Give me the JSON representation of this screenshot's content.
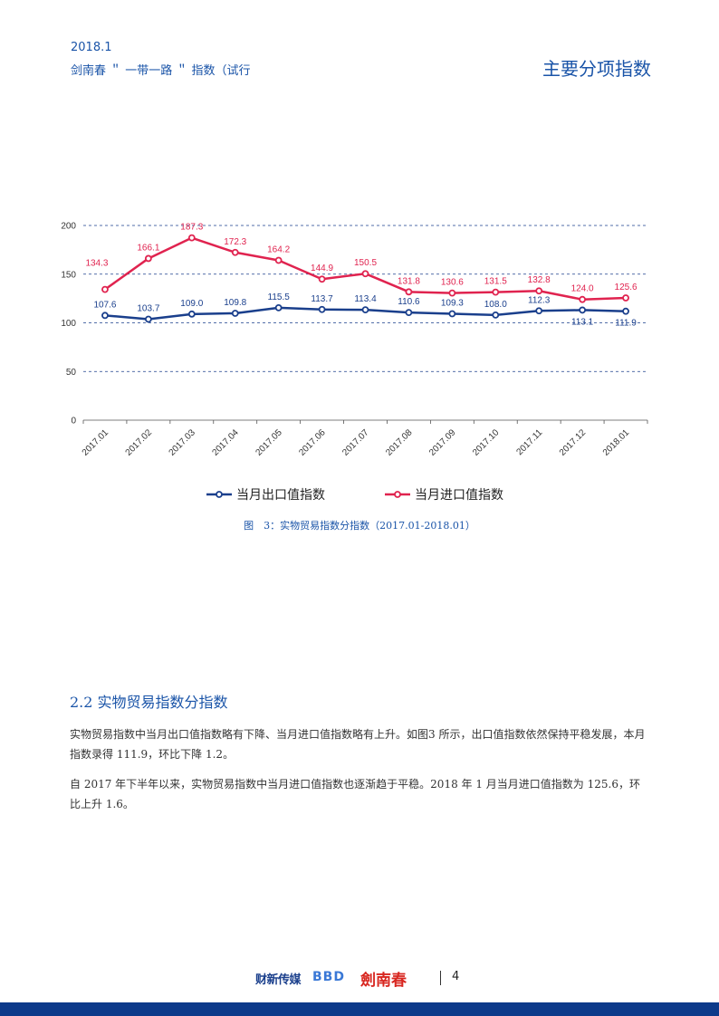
{
  "header": {
    "date": "2018.1",
    "subtitle": "剑南春 ＂ 一带一路 ＂ 指数（试行",
    "section": "主要分项指数"
  },
  "colors": {
    "export": "#1a3f8c",
    "import": "#e0234f",
    "accent": "#1a54a8",
    "grid": "#1a3f8c"
  },
  "chart_data": {
    "type": "line",
    "categories": [
      "2017.01",
      "2017.02",
      "2017.03",
      "2017.04",
      "2017.05",
      "2017.06",
      "2017.07",
      "2017.08",
      "2017.09",
      "2017.10",
      "2017.11",
      "2017.12",
      "2018.01"
    ],
    "ylim": [
      0,
      200
    ],
    "yticks": [
      0,
      50,
      100,
      150,
      200
    ],
    "grid": true,
    "legend_position": "bottom",
    "series": [
      {
        "name": "当月出口值指数",
        "color": "#1a3f8c",
        "values": [
          107.6,
          103.7,
          109.0,
          109.8,
          115.5,
          113.7,
          113.4,
          110.6,
          109.3,
          108.0,
          112.3,
          113.1,
          111.9
        ],
        "labels": [
          "107.6",
          "103.7",
          "109.0",
          "109.8",
          "115.5",
          "113.7",
          "113.4",
          "110.6",
          "109.3",
          "108.0",
          "112.3",
          "113.1",
          "111.9"
        ]
      },
      {
        "name": "当月进口值指数",
        "color": "#e0234f",
        "values": [
          134.3,
          166.1,
          187.3,
          172.3,
          164.2,
          144.9,
          150.5,
          131.8,
          130.6,
          131.5,
          132.8,
          124.0,
          125.6
        ],
        "labels": [
          "134.3",
          "166.1",
          "187.3",
          "172.3",
          "164.2",
          "144.9",
          "150.5",
          "131.8",
          "130.6",
          "131.5",
          "132.8",
          "124.0",
          "125.6"
        ]
      }
    ]
  },
  "caption": "图　3：实物贸易指数分指数（2017.01-2018.01）",
  "section": {
    "title": "2.2 实物贸易指数分指数",
    "paragraphs": [
      "实物贸易指数中当月出口值指数略有下降、当月进口值指数略有上升。如图3 所示，出口值指数依然保持平稳发展，本月指数录得 111.9，环比下降 1.2。",
      "自 2017 年下半年以来，实物贸易指数中当月进口值指数也逐渐趋于平稳。2018 年 1 月当月进口值指数为 125.6，环比上升 1.6。"
    ]
  },
  "footer": {
    "logo_left": "财新传媒",
    "logo_mid": "BBD",
    "logo_right": "劍南春",
    "page_number": "4"
  }
}
